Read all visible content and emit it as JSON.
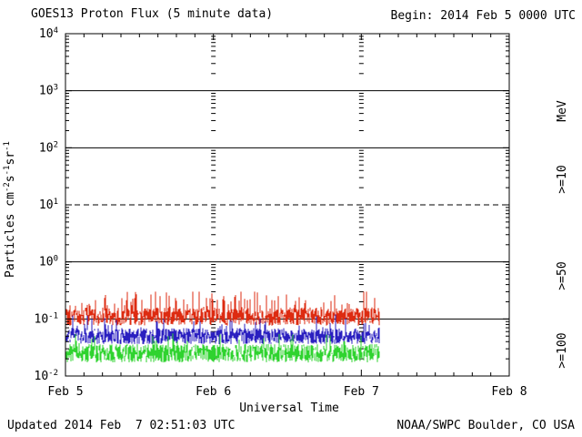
{
  "chart_data": {
    "type": "line",
    "title": "GOES13 Proton Flux (5 minute data)",
    "xlabel": "Universal Time",
    "ylabel": "Particles cm^-2 s^-1 sr^-1",
    "ylabel_parts": [
      {
        "t": "Particles cm"
      },
      {
        "sup": "-2"
      },
      {
        "t": "s"
      },
      {
        "sup": "-1"
      },
      {
        "t": "sr"
      },
      {
        "sup": "-1"
      }
    ],
    "annotations": {
      "begin": "Begin: 2014 Feb 5 0000 UTC",
      "updated": "Updated 2014 Feb  7 02:51:03 UTC",
      "source": "NOAA/SWPC Boulder, CO USA"
    },
    "x_axis": {
      "tick_labels": [
        "Feb 5",
        "Feb 6",
        "Feb 7",
        "Feb 8"
      ],
      "tick_days": [
        0,
        1,
        2,
        3
      ],
      "range_days": [
        0,
        3
      ],
      "minor_tick_hours": 3,
      "day_gridline_days": [
        1,
        2
      ]
    },
    "y_axis": {
      "scale": "log",
      "limits": [
        0.01,
        10000
      ],
      "tick_exponents": [
        4,
        3,
        2,
        1,
        0,
        -1,
        -2
      ],
      "solid_gridline_values": [
        1000,
        100,
        1,
        0.1
      ],
      "dashed_gridline_values": [
        10
      ]
    },
    "legend": {
      "units_label": "MeV",
      "units_color": "#000000",
      "entries": [
        {
          "label": ">=10",
          "color": "#dd2b11"
        },
        {
          "label": ">=50",
          "color": "#2a1fc0"
        },
        {
          "label": ">=100",
          "color": "#2fd32f"
        }
      ]
    },
    "series": [
      {
        "name": ">=10 MeV",
        "color": "#dd2b11",
        "start_day": 0,
        "end_day": 2.12,
        "typical_flux": 0.11,
        "min_flux": 0.07,
        "max_flux": 0.3,
        "noise_decades": 0.16,
        "spike_prob": 0.1,
        "spike_decades": 0.28,
        "seed": 101
      },
      {
        "name": ">=50 MeV",
        "color": "#2a1fc0",
        "start_day": 0,
        "end_day": 2.12,
        "typical_flux": 0.05,
        "min_flux": 0.03,
        "max_flux": 0.12,
        "noise_decades": 0.14,
        "spike_prob": 0.07,
        "spike_decades": 0.2,
        "seed": 202
      },
      {
        "name": ">=100 MeV",
        "color": "#2fd32f",
        "start_day": 0,
        "end_day": 2.12,
        "typical_flux": 0.025,
        "min_flux": 0.013,
        "max_flux": 0.06,
        "noise_decades": 0.16,
        "spike_prob": 0.06,
        "spike_decades": 0.16,
        "seed": 303
      }
    ]
  }
}
